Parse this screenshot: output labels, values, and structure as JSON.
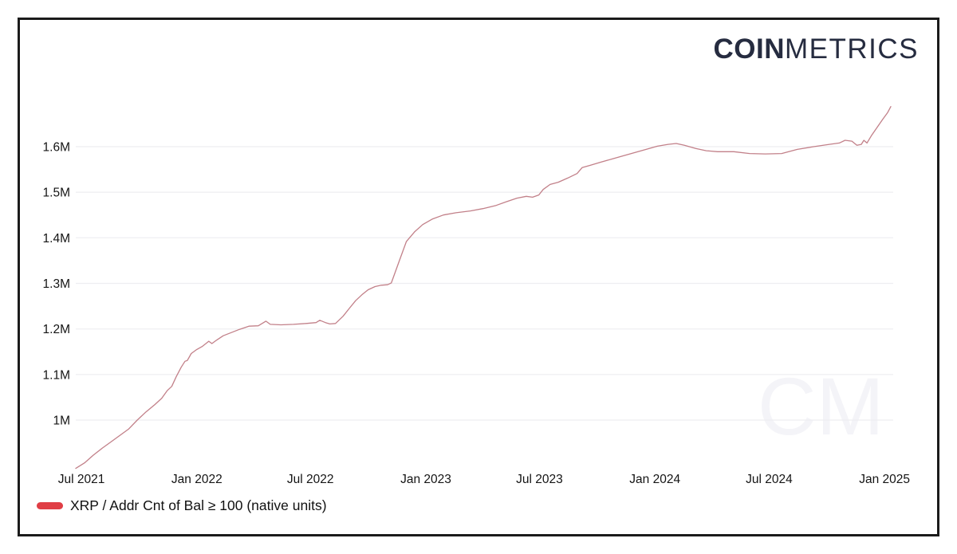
{
  "brand": {
    "logo_bold": "COIN",
    "logo_light": "METRICS",
    "logo_color": "#262c40",
    "watermark_text": "CM"
  },
  "legend": {
    "label": "XRP / Addr Cnt of Bal ≥ 100 (native units)",
    "swatch_color": "#e03e45"
  },
  "chart_data": {
    "type": "line",
    "title": "",
    "x_ticks": [
      "Jul 2021",
      "Jan 2022",
      "Jul 2022",
      "Jan 2023",
      "Jul 2023",
      "Jan 2024",
      "Jul 2024",
      "Jan 2025"
    ],
    "x_tick_dates": [
      "2021-07-01",
      "2022-01-01",
      "2022-07-01",
      "2023-01-01",
      "2023-07-01",
      "2024-01-01",
      "2024-07-01",
      "2025-01-01"
    ],
    "y_ticks": [
      "1M",
      "1.1M",
      "1.2M",
      "1.3M",
      "1.4M",
      "1.5M",
      "1.6M"
    ],
    "y_tick_values": [
      1.0,
      1.1,
      1.2,
      1.3,
      1.4,
      1.5,
      1.6
    ],
    "xlim": [
      "2021-06-22",
      "2025-01-11"
    ],
    "ylim": [
      0.86,
      1.7
    ],
    "unit": "native units (millions of addresses)",
    "grid": "horizontal",
    "grid_color": "#eeeef1",
    "tick_color": "#141414",
    "legend_position": "bottom-left",
    "series": [
      {
        "name": "XRP / Addr Cnt of Bal ≥ 100 (native units)",
        "color": "#e03e45",
        "line_render_color": "#c28089",
        "points": [
          [
            "2021-06-22",
            0.894
          ],
          [
            "2021-07-06",
            0.906
          ],
          [
            "2021-07-20",
            0.923
          ],
          [
            "2021-08-03",
            0.938
          ],
          [
            "2021-08-17",
            0.952
          ],
          [
            "2021-08-31",
            0.966
          ],
          [
            "2021-09-14",
            0.98
          ],
          [
            "2021-09-28",
            1.0
          ],
          [
            "2021-10-12",
            1.018
          ],
          [
            "2021-10-26",
            1.034
          ],
          [
            "2021-11-06",
            1.048
          ],
          [
            "2021-11-15",
            1.065
          ],
          [
            "2021-11-22",
            1.074
          ],
          [
            "2021-11-29",
            1.095
          ],
          [
            "2021-12-07",
            1.116
          ],
          [
            "2021-12-13",
            1.129
          ],
          [
            "2021-12-17",
            1.131
          ],
          [
            "2021-12-23",
            1.146
          ],
          [
            "2022-01-01",
            1.155
          ],
          [
            "2022-01-10",
            1.162
          ],
          [
            "2022-01-20",
            1.173
          ],
          [
            "2022-01-25",
            1.168
          ],
          [
            "2022-02-02",
            1.176
          ],
          [
            "2022-02-12",
            1.185
          ],
          [
            "2022-02-25",
            1.192
          ],
          [
            "2022-03-10",
            1.199
          ],
          [
            "2022-03-25",
            1.206
          ],
          [
            "2022-04-09",
            1.207
          ],
          [
            "2022-04-21",
            1.217
          ],
          [
            "2022-04-28",
            1.21
          ],
          [
            "2022-05-15",
            1.209
          ],
          [
            "2022-06-04",
            1.21
          ],
          [
            "2022-06-24",
            1.212
          ],
          [
            "2022-07-10",
            1.214
          ],
          [
            "2022-07-16",
            1.219
          ],
          [
            "2022-07-25",
            1.214
          ],
          [
            "2022-08-01",
            1.211
          ],
          [
            "2022-08-10",
            1.212
          ],
          [
            "2022-08-22",
            1.228
          ],
          [
            "2022-09-01",
            1.245
          ],
          [
            "2022-09-11",
            1.262
          ],
          [
            "2022-09-21",
            1.275
          ],
          [
            "2022-10-01",
            1.286
          ],
          [
            "2022-10-12",
            1.293
          ],
          [
            "2022-10-22",
            1.296
          ],
          [
            "2022-11-01",
            1.297
          ],
          [
            "2022-11-07",
            1.301
          ],
          [
            "2022-11-19",
            1.347
          ],
          [
            "2022-12-01",
            1.392
          ],
          [
            "2022-12-14",
            1.413
          ],
          [
            "2022-12-27",
            1.429
          ],
          [
            "2023-01-11",
            1.441
          ],
          [
            "2023-01-29",
            1.45
          ],
          [
            "2023-02-18",
            1.455
          ],
          [
            "2023-03-13",
            1.459
          ],
          [
            "2023-04-02",
            1.464
          ],
          [
            "2023-04-23",
            1.471
          ],
          [
            "2023-05-11",
            1.48
          ],
          [
            "2023-05-26",
            1.487
          ],
          [
            "2023-06-10",
            1.491
          ],
          [
            "2023-06-20",
            1.489
          ],
          [
            "2023-06-30",
            1.494
          ],
          [
            "2023-07-07",
            1.506
          ],
          [
            "2023-07-18",
            1.517
          ],
          [
            "2023-07-31",
            1.522
          ],
          [
            "2023-08-15",
            1.531
          ],
          [
            "2023-08-30",
            1.541
          ],
          [
            "2023-09-07",
            1.554
          ],
          [
            "2023-09-20",
            1.559
          ],
          [
            "2023-10-07",
            1.566
          ],
          [
            "2023-10-25",
            1.573
          ],
          [
            "2023-11-12",
            1.58
          ],
          [
            "2023-11-30",
            1.587
          ],
          [
            "2023-12-18",
            1.594
          ],
          [
            "2024-01-05",
            1.601
          ],
          [
            "2024-01-22",
            1.605
          ],
          [
            "2024-02-04",
            1.607
          ],
          [
            "2024-02-17",
            1.603
          ],
          [
            "2024-03-06",
            1.596
          ],
          [
            "2024-03-23",
            1.591
          ],
          [
            "2024-04-10",
            1.589
          ],
          [
            "2024-05-06",
            1.589
          ],
          [
            "2024-05-31",
            1.585
          ],
          [
            "2024-06-25",
            1.584
          ],
          [
            "2024-07-21",
            1.585
          ],
          [
            "2024-08-15",
            1.594
          ],
          [
            "2024-09-10",
            1.6
          ],
          [
            "2024-10-05",
            1.605
          ],
          [
            "2024-10-21",
            1.608
          ],
          [
            "2024-10-30",
            1.614
          ],
          [
            "2024-11-10",
            1.612
          ],
          [
            "2024-11-18",
            1.603
          ],
          [
            "2024-11-25",
            1.605
          ],
          [
            "2024-11-29",
            1.614
          ],
          [
            "2024-12-04",
            1.608
          ],
          [
            "2024-12-11",
            1.624
          ],
          [
            "2024-12-20",
            1.642
          ],
          [
            "2024-12-29",
            1.66
          ],
          [
            "2025-01-06",
            1.675
          ],
          [
            "2025-01-11",
            1.688
          ]
        ]
      }
    ]
  }
}
